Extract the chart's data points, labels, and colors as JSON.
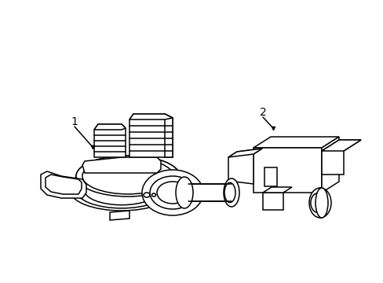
{
  "background_color": "#ffffff",
  "line_color": "#000000",
  "line_width": 1.1,
  "label1": "1",
  "label2": "2",
  "figsize": [
    4.89,
    3.6
  ],
  "dpi": 100
}
